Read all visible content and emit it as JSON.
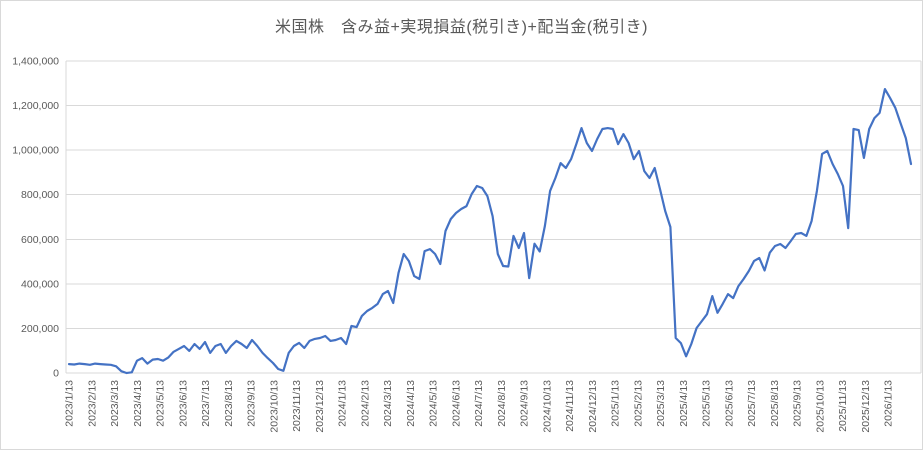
{
  "title": "米国株　含み益+実現損益(税引き)+配当金(税引き)",
  "colors": {
    "series_line": "#4472C4",
    "gridline": "#D9D9D9",
    "axis_line": "#D9D9D9",
    "label_text": "#595959"
  },
  "chart_data": {
    "type": "line",
    "title": "米国株　含み益+実現損益(税引き)+配当金(税引き)",
    "xlabel": "",
    "ylabel": "",
    "ylim": [
      0,
      1400000
    ],
    "y_tick_step": 200000,
    "y_tick_labels": [
      "0",
      "200,000",
      "400,000",
      "600,000",
      "800,000",
      "1,000,000",
      "1,200,000",
      "1,400,000"
    ],
    "x_tick_labels": [
      "2023/1/13",
      "2023/2/13",
      "2023/3/13",
      "2023/4/13",
      "2023/5/13",
      "2023/6/13",
      "2023/7/13",
      "2023/8/13",
      "2023/9/13",
      "2023/10/13",
      "2023/11/13",
      "2023/12/13",
      "2024/1/13",
      "2024/2/13",
      "2024/3/13",
      "2024/4/13",
      "2024/5/13",
      "2024/6/13",
      "2024/7/13",
      "2024/8/13",
      "2024/9/13",
      "2024/10/13",
      "2024/11/13",
      "2024/12/13",
      "2025/1/13",
      "2025/2/13",
      "2025/3/13",
      "2025/4/13",
      "2025/5/13",
      "2025/6/13",
      "2025/7/13",
      "2025/8/13",
      "2025/9/13",
      "2025/10/13",
      "2025/11/13",
      "2025/12/13",
      "2026/1/13"
    ],
    "x_interval": "weekly points starting 2023/1/13",
    "grid": "horizontal",
    "legend": "none",
    "series": [
      {
        "color": "#4472C4",
        "values": [
          40000,
          38000,
          42000,
          40000,
          37000,
          42000,
          40000,
          38000,
          37000,
          30000,
          8000,
          0,
          3000,
          55000,
          67000,
          42000,
          60000,
          63000,
          55000,
          70000,
          95000,
          108000,
          121000,
          99000,
          130000,
          108000,
          139000,
          90000,
          121000,
          130000,
          90000,
          121000,
          144000,
          130000,
          112000,
          148000,
          121000,
          90000,
          67000,
          45000,
          18000,
          10000,
          90000,
          121000,
          135000,
          112000,
          144000,
          153000,
          157000,
          166000,
          144000,
          148000,
          157000,
          130000,
          211000,
          206000,
          256000,
          278000,
          292000,
          310000,
          354000,
          368000,
          314000,
          449000,
          534000,
          502000,
          435000,
          422000,
          547000,
          556000,
          534000,
          489000,
          637000,
          691000,
          718000,
          736000,
          749000,
          803000,
          839000,
          830000,
          794000,
          704000,
          534000,
          480000,
          478000,
          615000,
          561000,
          628000,
          426000,
          580000,
          545000,
          660000,
          817000,
          875000,
          942000,
          920000,
          960000,
          1027000,
          1099000,
          1032000,
          996000,
          1050000,
          1095000,
          1099000,
          1095000,
          1027000,
          1072000,
          1032000,
          960000,
          996000,
          906000,
          875000,
          920000,
          825000,
          727000,
          655000,
          157000,
          134000,
          75000,
          130000,
          202000,
          233000,
          264000,
          345000,
          270000,
          310000,
          354000,
          336000,
          390000,
          422000,
          458000,
          503000,
          516000,
          460000,
          540000,
          570000,
          579000,
          561000,
          592000,
          624000,
          628000,
          615000,
          682000,
          817000,
          983000,
          996000,
          938000,
          893000,
          839000,
          650000,
          1095000,
          1090000,
          965000,
          1095000,
          1144000,
          1167000,
          1274000,
          1234000,
          1190000,
          1122000,
          1054000,
          938000
        ]
      }
    ]
  }
}
